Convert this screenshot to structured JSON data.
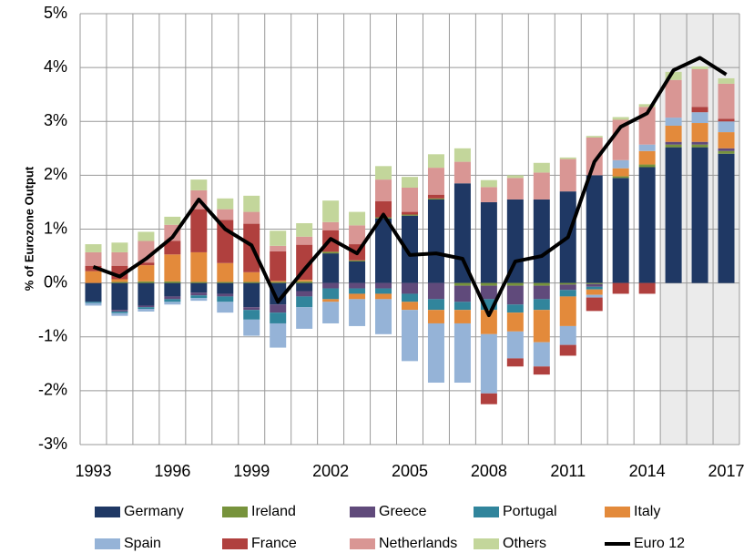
{
  "chart_data": {
    "type": "bar",
    "stacked": true,
    "y_label": "% of Eurozone Output",
    "categories": [
      "1993",
      null,
      null,
      "1996",
      null,
      null,
      "1999",
      null,
      null,
      "2002",
      null,
      null,
      "2005",
      null,
      null,
      "2008",
      null,
      null,
      "2011",
      null,
      null,
      "2014",
      null,
      null,
      "2017"
    ],
    "ylim": [
      -3,
      5
    ],
    "yticks": [
      {
        "value": -3,
        "label": "-3%"
      },
      {
        "value": -2,
        "label": "-2%"
      },
      {
        "value": -1,
        "label": "-1%"
      },
      {
        "value": 0,
        "label": "0%"
      },
      {
        "value": 1,
        "label": "1%"
      },
      {
        "value": 2,
        "label": "2%"
      },
      {
        "value": 3,
        "label": "3%"
      },
      {
        "value": 4,
        "label": "4%"
      },
      {
        "value": 5,
        "label": "5%"
      }
    ],
    "grid": true,
    "series": [
      {
        "name": "Germany",
        "color": "#1f3864",
        "values": [
          -0.35,
          -0.5,
          -0.42,
          -0.25,
          -0.18,
          -0.2,
          -0.45,
          -0.4,
          -0.15,
          0.55,
          0.4,
          1.2,
          1.25,
          1.55,
          1.85,
          1.5,
          1.55,
          1.55,
          1.7,
          2.0,
          1.95,
          2.15,
          2.52,
          2.52,
          2.4
        ]
      },
      {
        "name": "Ireland",
        "color": "#77933c",
        "values": [
          0,
          0.02,
          0.03,
          0.03,
          0.02,
          0.02,
          0.02,
          0.02,
          0.03,
          0.03,
          0.02,
          0.02,
          0.02,
          0.02,
          -0.05,
          -0.05,
          -0.05,
          -0.05,
          -0.03,
          -0.02,
          0.03,
          0.05,
          0.05,
          0.05,
          0.05
        ]
      },
      {
        "name": "Greece",
        "color": "#604a7b",
        "values": [
          0,
          -0.03,
          -0.03,
          -0.05,
          -0.05,
          -0.05,
          -0.05,
          -0.15,
          -0.1,
          -0.1,
          -0.1,
          -0.1,
          -0.2,
          -0.3,
          -0.3,
          -0.25,
          -0.35,
          -0.25,
          -0.1,
          -0.05,
          0,
          0,
          0.05,
          0.05,
          0.05
        ]
      },
      {
        "name": "Portugal",
        "color": "#31859c",
        "values": [
          -0.02,
          -0.03,
          -0.03,
          -0.05,
          -0.05,
          -0.1,
          -0.18,
          -0.2,
          -0.2,
          -0.2,
          -0.1,
          -0.1,
          -0.15,
          -0.2,
          -0.15,
          -0.2,
          -0.15,
          -0.2,
          -0.12,
          -0.05,
          0,
          0,
          0,
          0,
          0
        ]
      },
      {
        "name": "Italy",
        "color": "#e38a3b",
        "values": [
          0.22,
          0.05,
          0.3,
          0.5,
          0.55,
          0.35,
          0.18,
          0.02,
          0.03,
          -0.05,
          -0.1,
          -0.1,
          -0.15,
          -0.25,
          -0.25,
          -0.45,
          -0.35,
          -0.6,
          -0.55,
          -0.1,
          0.15,
          0.25,
          0.3,
          0.35,
          0.3
        ]
      },
      {
        "name": "Spain",
        "color": "#95b3d7",
        "values": [
          -0.05,
          -0.05,
          -0.05,
          -0.05,
          -0.05,
          -0.2,
          -0.3,
          -0.45,
          -0.4,
          -0.4,
          -0.5,
          -0.65,
          -0.95,
          -1.1,
          -1.1,
          -1.1,
          -0.5,
          -0.45,
          -0.35,
          -0.05,
          0.15,
          0.12,
          0.15,
          0.2,
          0.2
        ]
      },
      {
        "name": "France",
        "color": "#b0403e",
        "values": [
          0.1,
          0.25,
          0.05,
          0.25,
          0.8,
          0.8,
          0.9,
          0.55,
          0.65,
          0.4,
          0.3,
          0.3,
          0.05,
          0.07,
          0,
          -0.2,
          -0.15,
          -0.15,
          -0.2,
          -0.25,
          -0.2,
          -0.2,
          0,
          0.1,
          0.05
        ]
      },
      {
        "name": "Netherlands",
        "color": "#d99694",
        "values": [
          0.25,
          0.25,
          0.4,
          0.3,
          0.35,
          0.2,
          0.22,
          0.1,
          0.15,
          0.15,
          0.35,
          0.4,
          0.45,
          0.5,
          0.4,
          0.28,
          0.4,
          0.5,
          0.6,
          0.7,
          0.75,
          0.7,
          0.7,
          0.7,
          0.65
        ]
      },
      {
        "name": "Others",
        "color": "#c3d69b",
        "values": [
          0.15,
          0.18,
          0.17,
          0.15,
          0.2,
          0.2,
          0.3,
          0.28,
          0.25,
          0.4,
          0.25,
          0.25,
          0.2,
          0.25,
          0.25,
          0.13,
          0.05,
          0.18,
          0.03,
          0.03,
          0.05,
          0.05,
          0.15,
          0.05,
          0.1
        ]
      },
      {
        "name": "Euro 12",
        "color": "#000000",
        "type": "line",
        "values": [
          0.3,
          0.12,
          0.45,
          0.85,
          1.55,
          1.0,
          0.7,
          -0.35,
          0.25,
          0.82,
          0.55,
          1.27,
          0.52,
          0.55,
          0.45,
          -0.6,
          0.4,
          0.5,
          0.85,
          2.25,
          2.9,
          3.15,
          3.95,
          4.18,
          3.87
        ]
      }
    ]
  }
}
